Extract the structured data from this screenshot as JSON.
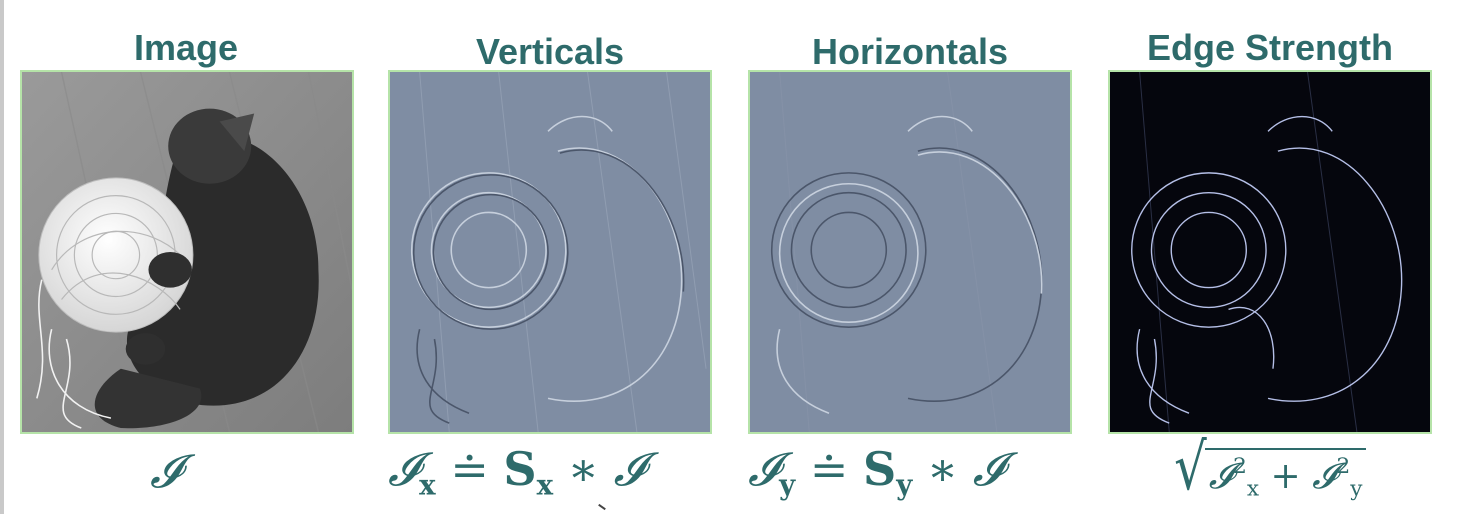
{
  "panels": [
    {
      "id": "image",
      "title": "Image",
      "formula": "𝓘"
    },
    {
      "id": "verticals",
      "title": "Verticals",
      "formula": "𝓘x ≐ Sx ∗ 𝓘"
    },
    {
      "id": "horizontals",
      "title": "Horizontals",
      "formula": "𝓘y ≐ Sy ∗ 𝓘"
    },
    {
      "id": "edge",
      "title": "Edge Strength",
      "formula": "√(𝓘x² + 𝓘y²)"
    }
  ],
  "colors": {
    "title": "#2e6b6b",
    "frame_border": "#b5e3a8",
    "relief_bg": "#7f8da3",
    "edge_bg": "#05060d",
    "edge_line": "#c9d4ff"
  }
}
